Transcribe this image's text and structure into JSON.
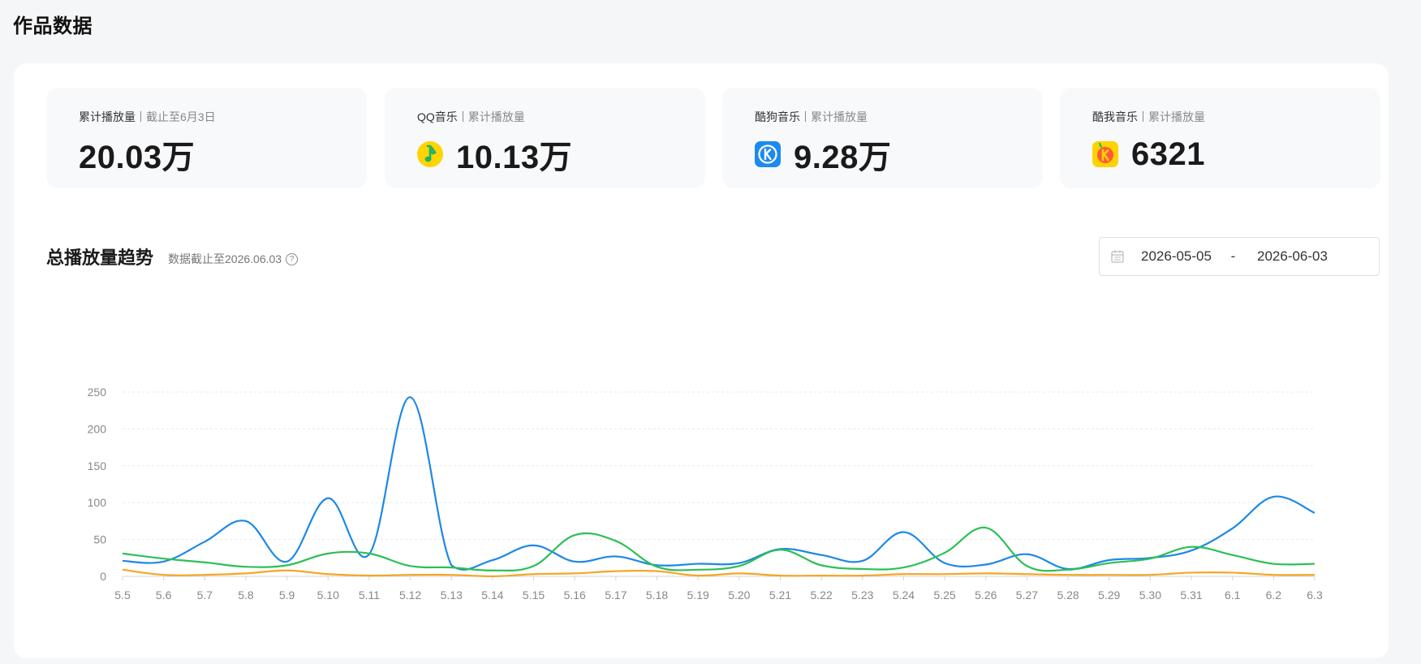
{
  "header": {
    "title": "作品数据"
  },
  "stats": [
    {
      "label": "累计播放量",
      "sub": "截止至6月3日",
      "value": "20.03万",
      "icon": ""
    },
    {
      "label": "QQ音乐",
      "sub": "累计播放量",
      "value": "10.13万",
      "icon": "qq-music-icon"
    },
    {
      "label": "酷狗音乐",
      "sub": "累计播放量",
      "value": "9.28万",
      "icon": "kugou-music-icon"
    },
    {
      "label": "酷我音乐",
      "sub": "累计播放量",
      "value": "6321",
      "icon": "kuwo-music-icon"
    }
  ],
  "trend": {
    "title": "总播放量趋势",
    "note": "数据截止至2026.06.03",
    "help_icon": "?",
    "date_start": "2026-05-05",
    "date_sep": "-",
    "date_end": "2026-06-03"
  },
  "chart_data": {
    "type": "line",
    "title": "",
    "xlabel": "",
    "ylabel": "",
    "ylim": [
      0,
      250
    ],
    "yticks": [
      0,
      50,
      100,
      150,
      200,
      250
    ],
    "grid": true,
    "legend": "none",
    "categories": [
      "5.5",
      "5.6",
      "5.7",
      "5.8",
      "5.9",
      "5.10",
      "5.11",
      "5.12",
      "5.13",
      "5.14",
      "5.15",
      "5.16",
      "5.17",
      "5.18",
      "5.19",
      "5.20",
      "5.21",
      "5.22",
      "5.23",
      "5.24",
      "5.25",
      "5.26",
      "5.27",
      "5.28",
      "5.29",
      "5.30",
      "5.31",
      "6.1",
      "6.2",
      "6.3"
    ],
    "series": [
      {
        "color": "#1e88e5",
        "values": [
          21,
          20,
          47,
          75,
          20,
          106,
          30,
          243,
          15,
          22,
          42,
          20,
          27,
          15,
          17,
          18,
          37,
          29,
          21,
          60,
          18,
          16,
          30,
          10,
          22,
          25,
          35,
          65,
          108,
          86
        ]
      },
      {
        "color": "#2cbf55",
        "values": [
          31,
          24,
          19,
          13,
          15,
          31,
          31,
          14,
          12,
          8,
          14,
          56,
          48,
          13,
          9,
          14,
          36,
          15,
          10,
          12,
          32,
          66,
          14,
          9,
          18,
          24,
          40,
          29,
          17,
          17
        ]
      },
      {
        "color": "#f5a623",
        "values": [
          9,
          2,
          2,
          4,
          8,
          3,
          1,
          2,
          2,
          0,
          3,
          4,
          7,
          7,
          1,
          4,
          1,
          1,
          1,
          3,
          3,
          4,
          3,
          2,
          2,
          2,
          5,
          5,
          2,
          2
        ]
      }
    ]
  },
  "colors": {
    "axis": "#cfd4dc",
    "grid": "#e6e9ee",
    "tick_text": "#888888"
  }
}
